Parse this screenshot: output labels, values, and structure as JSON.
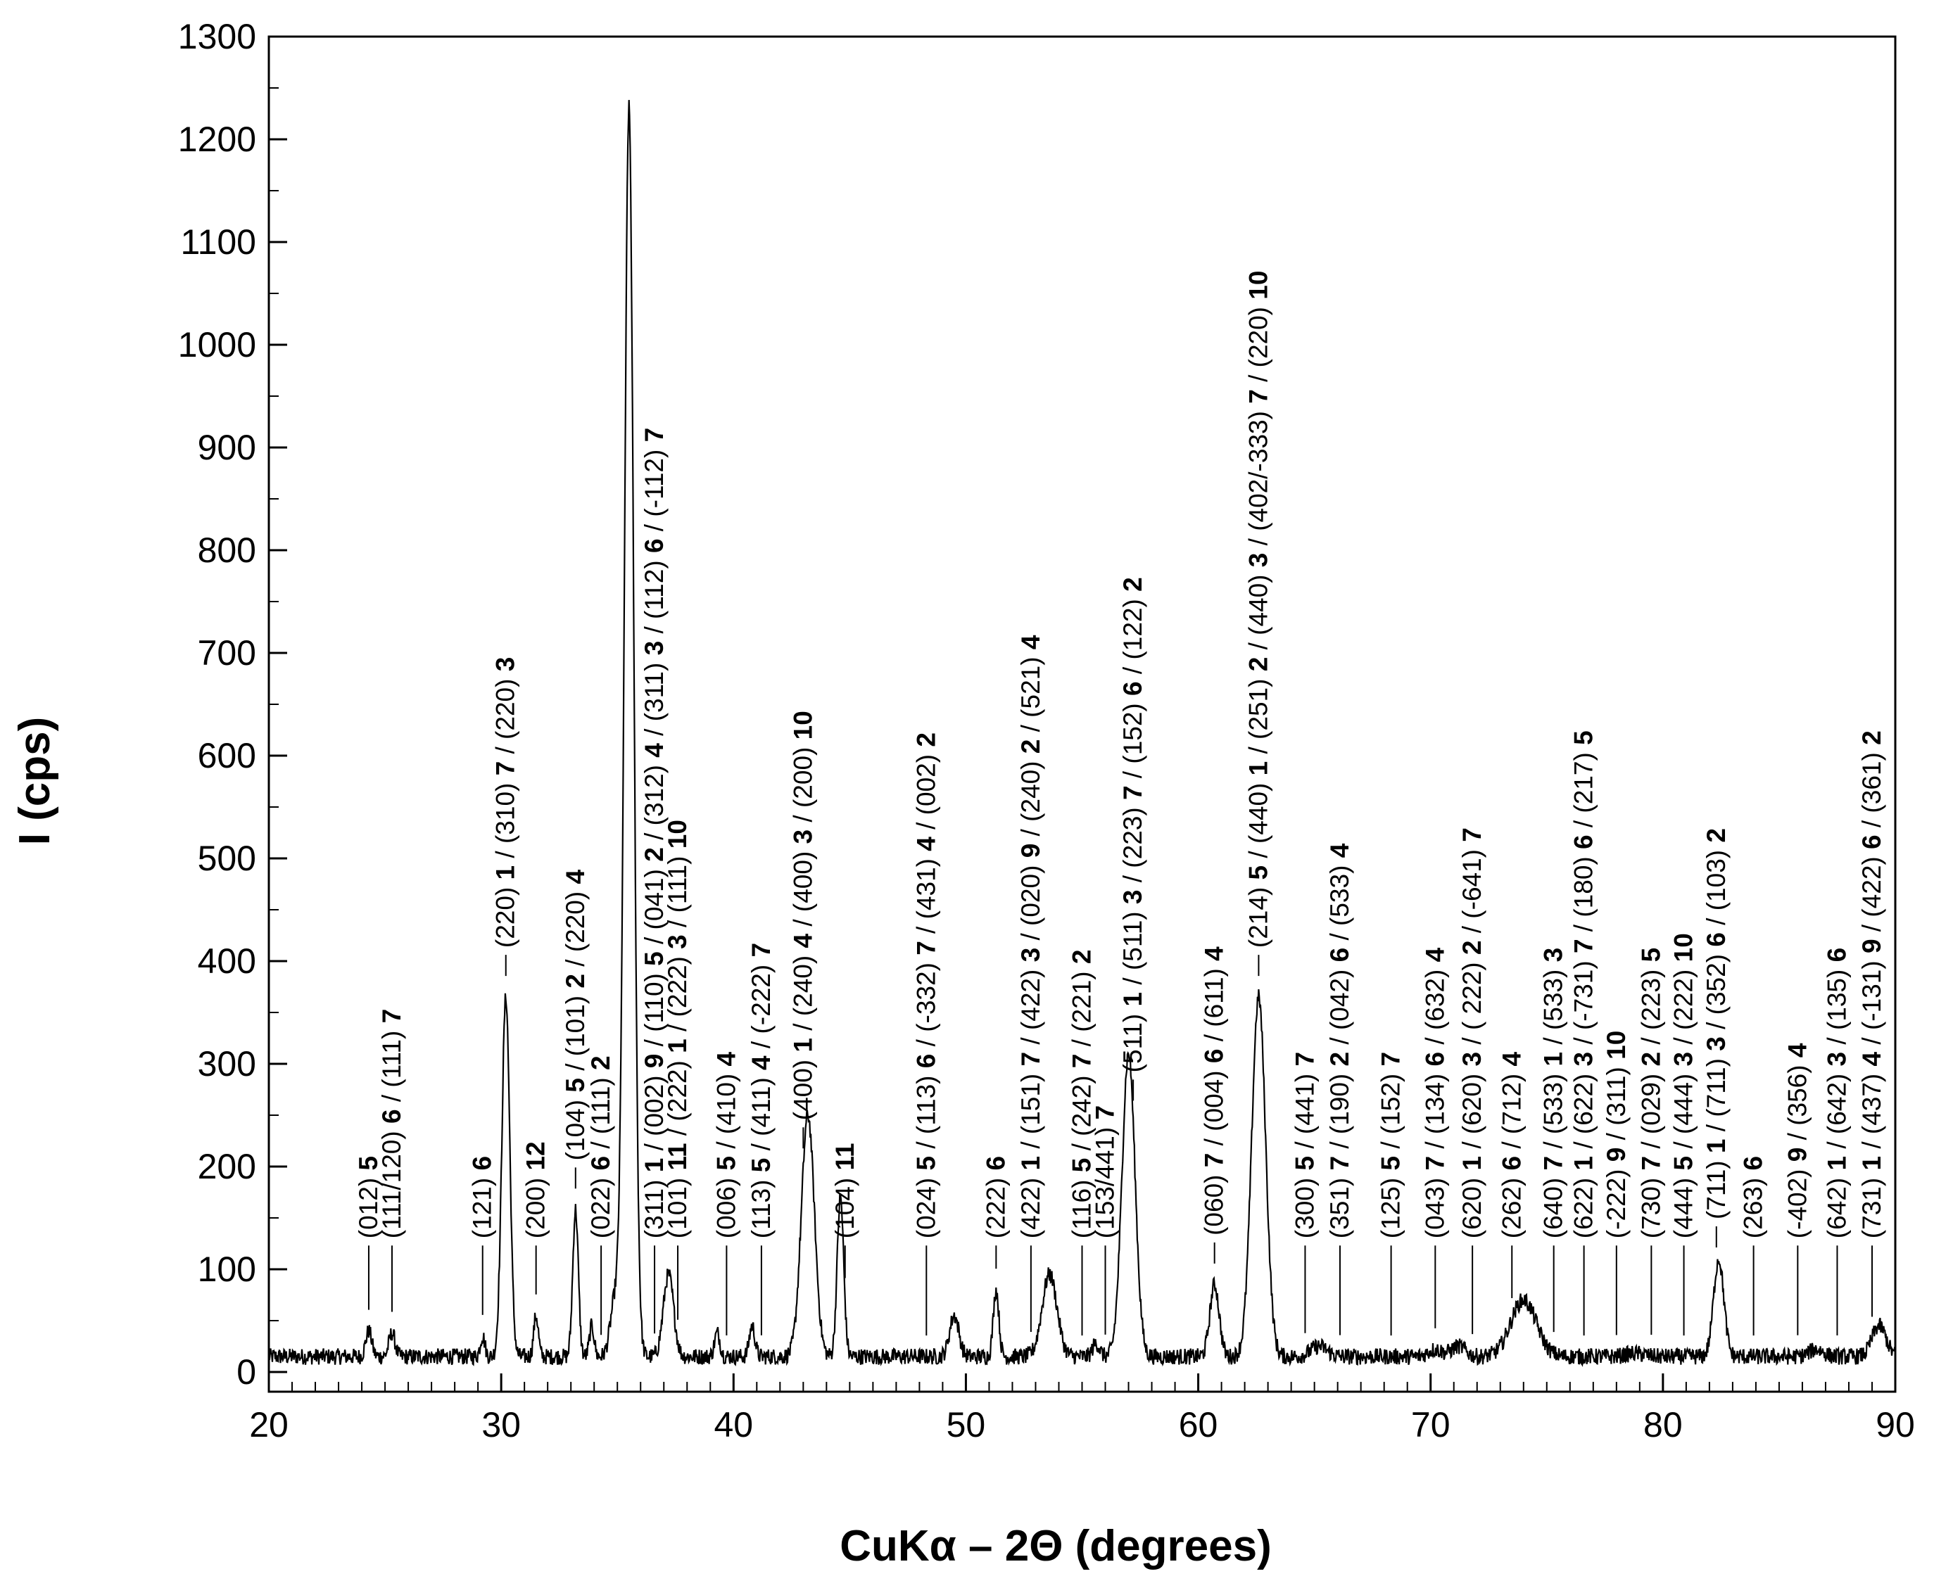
{
  "chart_data": {
    "type": "line",
    "title": "",
    "xlabel": "CuKα – 2Θ (degrees)",
    "ylabel": "I (cps)",
    "xlim": [
      20,
      90
    ],
    "ylim": [
      0,
      1300
    ],
    "xticks": [
      "20",
      "30",
      "40",
      "50",
      "60",
      "70",
      "80",
      "90"
    ],
    "yticks": [
      "0",
      "100",
      "200",
      "300",
      "400",
      "500",
      "600",
      "700",
      "800",
      "900",
      "1000",
      "1100",
      "1200",
      "1300"
    ],
    "grid": false,
    "legend": "none",
    "series": [
      {
        "baseline": 15,
        "noise": 8,
        "peaks": [
          {
            "x": 24.3,
            "y": 40,
            "w": 0.13
          },
          {
            "x": 25.3,
            "y": 38,
            "w": 0.13
          },
          {
            "x": 29.2,
            "y": 35,
            "w": 0.1
          },
          {
            "x": 30.2,
            "y": 365,
            "w": 0.17
          },
          {
            "x": 31.5,
            "y": 55,
            "w": 0.1
          },
          {
            "x": 33.2,
            "y": 158,
            "w": 0.12
          },
          {
            "x": 33.9,
            "y": 45,
            "w": 0.1
          },
          {
            "x": 34.9,
            "y": 70,
            "w": 0.2
          },
          {
            "x": 35.5,
            "y": 1230,
            "w": 0.2
          },
          {
            "x": 37.2,
            "y": 95,
            "w": 0.22
          },
          {
            "x": 39.3,
            "y": 38,
            "w": 0.12
          },
          {
            "x": 40.8,
            "y": 45,
            "w": 0.12
          },
          {
            "x": 43.2,
            "y": 250,
            "w": 0.28
          },
          {
            "x": 44.6,
            "y": 170,
            "w": 0.14
          },
          {
            "x": 49.5,
            "y": 55,
            "w": 0.2
          },
          {
            "x": 51.3,
            "y": 80,
            "w": 0.12
          },
          {
            "x": 53.6,
            "y": 95,
            "w": 0.32
          },
          {
            "x": 55.6,
            "y": 28,
            "w": 0.15
          },
          {
            "x": 57.0,
            "y": 310,
            "w": 0.28
          },
          {
            "x": 60.7,
            "y": 85,
            "w": 0.2
          },
          {
            "x": 62.6,
            "y": 365,
            "w": 0.3
          },
          {
            "x": 65.2,
            "y": 25,
            "w": 0.35
          },
          {
            "x": 70.2,
            "y": 22,
            "w": 0.3
          },
          {
            "x": 71.2,
            "y": 25,
            "w": 0.3
          },
          {
            "x": 74.0,
            "y": 70,
            "w": 0.55
          },
          {
            "x": 78.8,
            "y": 18,
            "w": 0.4
          },
          {
            "x": 82.4,
            "y": 110,
            "w": 0.22
          },
          {
            "x": 86.6,
            "y": 22,
            "w": 0.3
          },
          {
            "x": 89.3,
            "y": 45,
            "w": 0.3
          }
        ]
      }
    ],
    "annotations": [
      {
        "x": 24.3,
        "text": "(012) ",
        "bold": "5"
      },
      {
        "x": 25.3,
        "text": "(111/120) ",
        "bold": "6",
        "text2": " / (111) ",
        "bold2": "7"
      },
      {
        "x": 29.2,
        "text": "(121) ",
        "bold": "6"
      },
      {
        "x": 30.2,
        "text": "(220) ",
        "bold": "1",
        "text2": " / (310) ",
        "bold2": "7",
        "text3": " / (220) ",
        "bold3": "3"
      },
      {
        "x": 31.5,
        "text": "(200) ",
        "bold": "12"
      },
      {
        "x": 33.2,
        "text": "(104) ",
        "bold": "5",
        "text2": " / (101) ",
        "bold2": "2",
        "text3": " / (220) ",
        "bold3": "4"
      },
      {
        "x": 34.3,
        "text": "(022) ",
        "bold": "6",
        "text2": " / (111) ",
        "bold2": "2"
      },
      {
        "x": 36.6,
        "text": "(311) ",
        "bold": "1",
        "text2": " / (002) ",
        "bold2": "9",
        "text3": " / (110) ",
        "bold3": "5",
        "text4": " / (041) ",
        "bold4": "2",
        "text5": " / (312) ",
        "bold5": "4",
        "text6": " / (311) ",
        "bold6": "3",
        "text7": " / (112) ",
        "bold7": "6",
        "text8": " / (-112) ",
        "bold8": "7"
      },
      {
        "x": 37.6,
        "text": "(101) ",
        "bold": "11",
        "text2": " / (222) ",
        "bold2": "1",
        "text3": " / (222) ",
        "bold3": "3",
        "text4": " / (111) ",
        "bold4": "10"
      },
      {
        "x": 39.7,
        "text": "(006) ",
        "bold": "5",
        "text2": " / (410) ",
        "bold2": "4"
      },
      {
        "x": 41.2,
        "text": "(113) ",
        "bold": "5",
        "text2": " / (411) ",
        "bold2": "4",
        "text3": " / (-222) ",
        "bold3": "7"
      },
      {
        "x": 43.0,
        "text": "(400) ",
        "bold": "1",
        "text2": " / (240) ",
        "bold2": "4",
        "text3": " / (400) ",
        "bold3": "3",
        "text4": " / (200) ",
        "bold4": "10"
      },
      {
        "x": 44.8,
        "text": "(104) ",
        "bold": "11"
      },
      {
        "x": 48.3,
        "text": "(024) ",
        "bold": "5",
        "text2": " / (113) ",
        "bold2": "6",
        "text3": " / (-332) ",
        "bold3": "7",
        "text4": " / (431) ",
        "bold4": "4",
        "text5": " / (002) ",
        "bold5": "2"
      },
      {
        "x": 51.3,
        "text": "(222) ",
        "bold": "6"
      },
      {
        "x": 52.8,
        "text": "(422) ",
        "bold": "1",
        "text2": " / (151) ",
        "bold2": "7",
        "text3": " / (422) ",
        "bold3": "3",
        "text4": " / (020) ",
        "bold4": "9",
        "text5": " / (240) ",
        "bold5": "2",
        "text6": " / (521) ",
        "bold6": "4"
      },
      {
        "x": 55.0,
        "text": "(116) ",
        "bold": "5",
        "text2": " / (242) ",
        "bold2": "7",
        "text3": " / (221) ",
        "bold3": "2"
      },
      {
        "x": 56.0,
        "text": "(153/441) ",
        "bold": "7"
      },
      {
        "x": 57.2,
        "text": "(511) ",
        "bold": "1",
        "text2": " / (511) ",
        "bold2": "3",
        "text3": " / (223) ",
        "bold3": "7",
        "text4": " / (152) ",
        "bold4": "6",
        "text5": " / (122) ",
        "bold5": "2"
      },
      {
        "x": 60.7,
        "text": "(060) ",
        "bold": "7",
        "text2": " / (004) ",
        "bold2": "6",
        "text3": " / (611) ",
        "bold3": "4"
      },
      {
        "x": 62.6,
        "text": "(214) ",
        "bold": "5",
        "text2": " / (440) ",
        "bold2": "1",
        "text3": " / (251) ",
        "bold3": "2",
        "text4": " / (440) ",
        "bold4": "3",
        "text5": " / (402/-333) ",
        "bold5": "7",
        "text6": " / (220) ",
        "bold6": "10"
      },
      {
        "x": 64.6,
        "text": "(300) ",
        "bold": "5",
        "text2": " / (441) ",
        "bold2": "7"
      },
      {
        "x": 66.1,
        "text": "(351) ",
        "bold": "7",
        "text2": " / (190) ",
        "bold2": "2",
        "text3": " / (042) ",
        "bold3": "6",
        "text4": " / (533) ",
        "bold4": "4"
      },
      {
        "x": 68.3,
        "text": "(125) ",
        "bold": "5",
        "text2": " / (152) ",
        "bold2": "7"
      },
      {
        "x": 70.2,
        "text": "(043) ",
        "bold": "7",
        "text2": " / (134) ",
        "bold2": "6",
        "text3": " / (632) ",
        "bold3": "4"
      },
      {
        "x": 71.8,
        "text": "(620) ",
        "bold": "1",
        "text2": " / (620) ",
        "bold2": "3",
        "text3": " / ( 222) ",
        "bold3": "2",
        "text4": " / (-641) ",
        "bold4": "7"
      },
      {
        "x": 73.5,
        "text": "(262) ",
        "bold": "6",
        "text2": " / (712) ",
        "bold2": "4"
      },
      {
        "x": 75.3,
        "text": "(640) ",
        "bold": "7",
        "text2": " / (533) ",
        "bold2": "1",
        "text3": " / (533) ",
        "bold3": "3"
      },
      {
        "x": 76.6,
        "text": "(622) ",
        "bold": "1",
        "text2": " / (622) ",
        "bold2": "3",
        "text3": " / (-731) ",
        "bold3": "7",
        "text4": " / (180) ",
        "bold4": "6",
        "text5": " / (217) ",
        "bold5": "5"
      },
      {
        "x": 78.0,
        "text": "(-222) ",
        "bold": "9",
        "text2": " / (311) ",
        "bold2": "10"
      },
      {
        "x": 79.5,
        "text": "(730) ",
        "bold": "7",
        "text2": " / (029) ",
        "bold2": "2",
        "text3": " / (223) ",
        "bold3": "5"
      },
      {
        "x": 80.9,
        "text": "(444) ",
        "bold": "5",
        "text2": " / (444) ",
        "bold2": "3",
        "text3": " / (222) ",
        "bold3": "10"
      },
      {
        "x": 82.3,
        "text": "(711) ",
        "bold": "1",
        "text2": " / (711) ",
        "bold2": "3",
        "text3": " / (352) ",
        "bold3": "6",
        "text4": " / (103) ",
        "bold4": "2"
      },
      {
        "x": 83.9,
        "text": "(263) ",
        "bold": "6"
      },
      {
        "x": 85.8,
        "text": "(-402) ",
        "bold": "9",
        "text2": " / (356) ",
        "bold2": "4"
      },
      {
        "x": 87.5,
        "text": "(642) ",
        "bold": "1",
        "text2": " / (642) ",
        "bold2": "3",
        "text3": " / (135) ",
        "bold3": "6"
      },
      {
        "x": 89.0,
        "text": "(731) ",
        "bold": "1",
        "text2": " / (437) ",
        "bold2": "4",
        "text3": " / (-131) ",
        "bold3": "9",
        "text4": " / (422) ",
        "bold4": "6",
        "text5": " / (361) ",
        "bold5": "2"
      }
    ]
  }
}
